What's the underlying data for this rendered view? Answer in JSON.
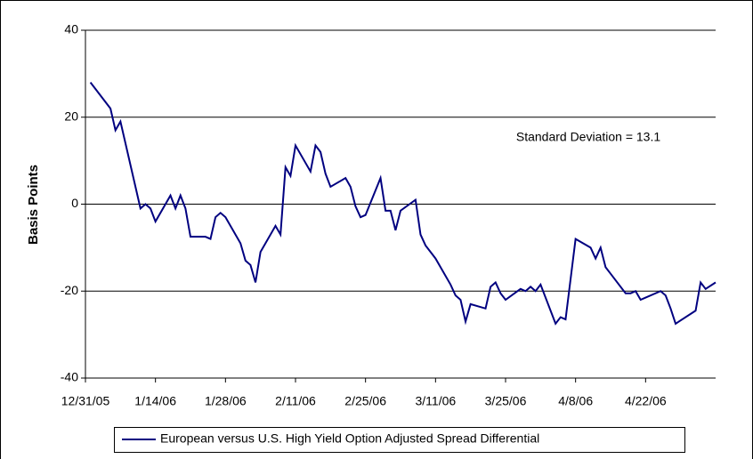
{
  "chart_data": {
    "type": "line",
    "ylabel": "Basis Points",
    "annotation": "Standard Deviation = 13.1",
    "x": [
      "1/1/06",
      "1/5/06",
      "1/6/06",
      "1/7/06",
      "1/11/06",
      "1/12/06",
      "1/13/06",
      "1/14/06",
      "1/17/06",
      "1/18/06",
      "1/19/06",
      "1/20/06",
      "1/21/06",
      "1/24/06",
      "1/25/06",
      "1/26/06",
      "1/27/06",
      "1/28/06",
      "1/31/06",
      "2/1/06",
      "2/2/06",
      "2/3/06",
      "2/4/06",
      "2/7/06",
      "2/8/06",
      "2/9/06",
      "2/10/06",
      "2/11/06",
      "2/14/06",
      "2/15/06",
      "2/16/06",
      "2/17/06",
      "2/18/06",
      "2/21/06",
      "2/22/06",
      "2/23/06",
      "2/24/06",
      "2/25/06",
      "2/28/06",
      "3/1/06",
      "3/2/06",
      "3/3/06",
      "3/4/06",
      "3/7/06",
      "3/8/06",
      "3/9/06",
      "3/10/06",
      "3/11/06",
      "3/14/06",
      "3/15/06",
      "3/16/06",
      "3/17/06",
      "3/18/06",
      "3/21/06",
      "3/22/06",
      "3/23/06",
      "3/24/06",
      "3/25/06",
      "3/28/06",
      "3/29/06",
      "3/30/06",
      "3/31/06",
      "4/1/06",
      "4/4/06",
      "4/5/06",
      "4/6/06",
      "4/8/06",
      "4/11/06",
      "4/12/06",
      "4/13/06",
      "4/14/06",
      "4/15/06",
      "4/18/06",
      "4/19/06",
      "4/20/06",
      "4/21/06",
      "4/22/06",
      "4/25/06",
      "4/26/06",
      "4/27/06",
      "4/28/06",
      "5/2/06",
      "5/3/06",
      "5/4/06",
      "5/6/06"
    ],
    "series": [
      {
        "name": "European versus U.S. High Yield Option Adjusted Spread Differential",
        "color": "#000080",
        "values": [
          28,
          22,
          17,
          19,
          -1,
          0,
          -1,
          -4,
          2,
          -1,
          2,
          -1,
          -7.5,
          -7.5,
          -8,
          -3,
          -2,
          -3,
          -9,
          -13,
          -14,
          -18,
          -11,
          -5,
          -7,
          8.5,
          6.5,
          13.5,
          7.5,
          13.5,
          12,
          7,
          4,
          6,
          4,
          -0.5,
          -3,
          -2.5,
          6,
          -1.5,
          -1.5,
          -6,
          -1.5,
          1,
          -7,
          -9.5,
          -11,
          -12.5,
          -18.5,
          -21,
          -22,
          -27,
          -23,
          -24,
          -19,
          -18,
          -20.5,
          -22,
          -19.5,
          -20,
          -19,
          -20,
          -18.5,
          -27.5,
          -26,
          -26.5,
          -8,
          -10,
          -12.5,
          -10,
          -14.5,
          -16,
          -20.5,
          -20.5,
          -20,
          -22,
          -21.5,
          -20,
          -21,
          -24,
          -27.5,
          -24.5,
          -18,
          -19.5,
          -18
        ]
      }
    ],
    "xlim": [
      "12/31/05",
      "5/6/06"
    ],
    "xticks": [
      "12/31/05",
      "1/14/06",
      "1/28/06",
      "2/11/06",
      "2/25/06",
      "3/11/06",
      "3/25/06",
      "4/8/06",
      "4/22/06"
    ],
    "ylim": [
      -40,
      40
    ],
    "yticks": [
      -40,
      -20,
      0,
      20,
      40
    ],
    "grid": true
  }
}
